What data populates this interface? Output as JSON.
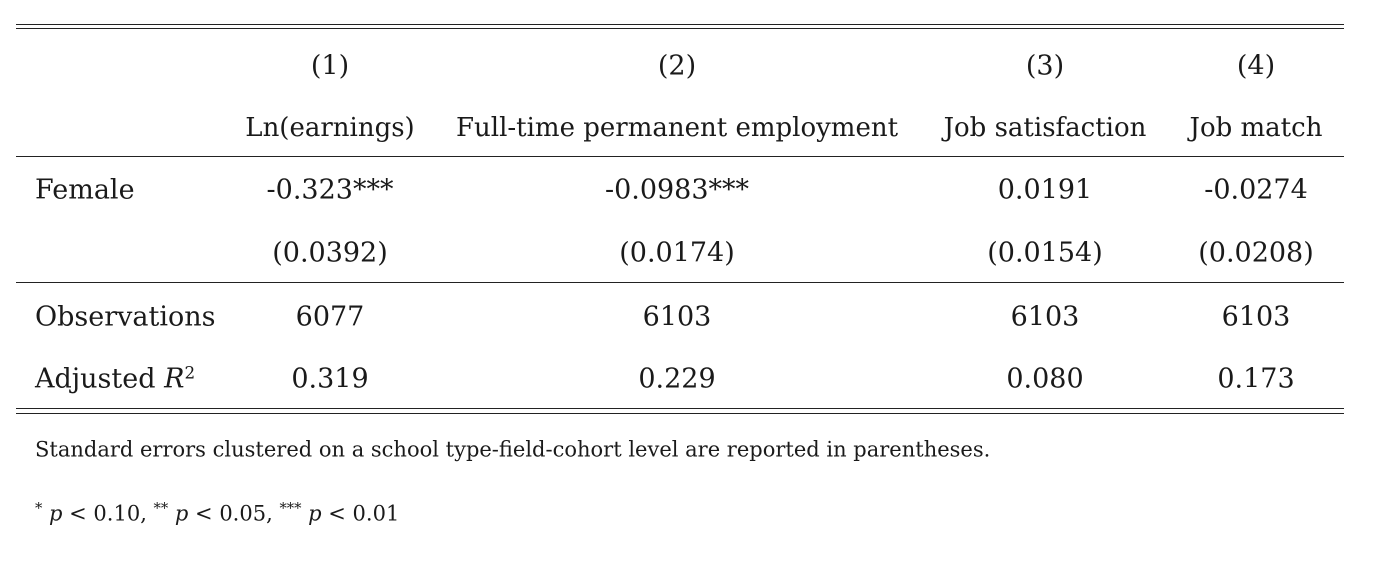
{
  "table": {
    "column_numbers": [
      "(1)",
      "(2)",
      "(3)",
      "(4)"
    ],
    "column_titles": [
      "Ln(earnings)",
      "Full-time permanent employment",
      "Job satisfaction",
      "Job match"
    ],
    "rows": {
      "female": {
        "label": "Female",
        "coefficients": [
          "-0.323***",
          "-0.0983***",
          "0.0191",
          "-0.0274"
        ],
        "std_errors": [
          "(0.0392)",
          "(0.0174)",
          "(0.0154)",
          "(0.0208)"
        ]
      },
      "observations": {
        "label": "Observations",
        "values": [
          "6077",
          "6103",
          "6103",
          "6103"
        ]
      },
      "adjusted_r2": {
        "label_text": "Adjusted ",
        "label_var": "R",
        "label_exp": "2",
        "values": [
          "0.319",
          "0.229",
          "0.080",
          "0.173"
        ]
      }
    }
  },
  "notes": {
    "se_note": "Standard errors clustered on a school type-field-cohort level are reported in parentheses.",
    "significance": {
      "s1_star": "*",
      "s1_var": "p",
      "s1_rest": " < 0.10, ",
      "s2_star": "**",
      "s2_var": "p",
      "s2_rest": " < 0.05, ",
      "s3_star": "***",
      "s3_var": "p",
      "s3_rest": " < 0.01"
    }
  }
}
